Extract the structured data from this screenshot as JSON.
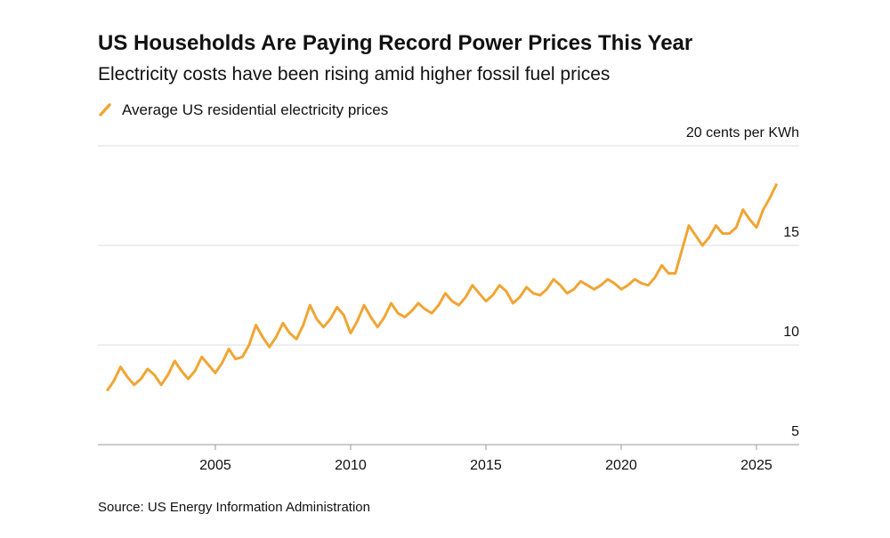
{
  "chart_data": {
    "type": "line",
    "title": "US Households Are Paying Record Power Prices This Year",
    "subtitle": "Electricity costs have been rising amid higher fossil fuel prices",
    "source": "Source: US Energy Information Administration",
    "x": [
      2001,
      2001.25,
      2001.5,
      2001.75,
      2002,
      2002.25,
      2002.5,
      2002.75,
      2003,
      2003.25,
      2003.5,
      2003.75,
      2004,
      2004.25,
      2004.5,
      2004.75,
      2005,
      2005.25,
      2005.5,
      2005.75,
      2006,
      2006.25,
      2006.5,
      2006.75,
      2007,
      2007.25,
      2007.5,
      2007.75,
      2008,
      2008.25,
      2008.5,
      2008.75,
      2009,
      2009.25,
      2009.5,
      2009.75,
      2010,
      2010.25,
      2010.5,
      2010.75,
      2011,
      2011.25,
      2011.5,
      2011.75,
      2012,
      2012.25,
      2012.5,
      2012.75,
      2013,
      2013.25,
      2013.5,
      2013.75,
      2014,
      2014.25,
      2014.5,
      2014.75,
      2015,
      2015.25,
      2015.5,
      2015.75,
      2016,
      2016.25,
      2016.5,
      2016.75,
      2017,
      2017.25,
      2017.5,
      2017.75,
      2018,
      2018.25,
      2018.5,
      2018.75,
      2019,
      2019.25,
      2019.5,
      2019.75,
      2020,
      2020.25,
      2020.5,
      2020.75,
      2021,
      2021.25,
      2021.5,
      2021.75,
      2022,
      2022.25,
      2022.5,
      2022.75,
      2023,
      2023.25,
      2023.5,
      2023.75,
      2024,
      2024.25,
      2024.5,
      2024.75,
      2025,
      2025.25,
      2025.5,
      2025.75
    ],
    "series": [
      {
        "name": "Average US residential electricity prices",
        "color": "#f0a534",
        "values": [
          7.7,
          8.2,
          8.9,
          8.4,
          8.0,
          8.3,
          8.8,
          8.5,
          8.0,
          8.5,
          9.2,
          8.7,
          8.3,
          8.7,
          9.4,
          9.0,
          8.6,
          9.1,
          9.8,
          9.3,
          9.4,
          10.0,
          11.0,
          10.4,
          9.9,
          10.4,
          11.1,
          10.6,
          10.3,
          11.0,
          12.0,
          11.3,
          10.9,
          11.3,
          11.9,
          11.5,
          10.6,
          11.2,
          12.0,
          11.4,
          10.9,
          11.4,
          12.1,
          11.6,
          11.4,
          11.7,
          12.1,
          11.8,
          11.6,
          12.0,
          12.6,
          12.2,
          12.0,
          12.4,
          13.0,
          12.6,
          12.2,
          12.5,
          13.0,
          12.7,
          12.1,
          12.4,
          12.9,
          12.6,
          12.5,
          12.8,
          13.3,
          13.0,
          12.6,
          12.8,
          13.2,
          13.0,
          12.8,
          13.0,
          13.3,
          13.1,
          12.8,
          13.0,
          13.3,
          13.1,
          13.0,
          13.4,
          14.0,
          13.6,
          13.6,
          14.8,
          16.0,
          15.5,
          15.0,
          15.4,
          16.0,
          15.6,
          15.6,
          15.9,
          16.8,
          16.3,
          15.9,
          16.8,
          17.4,
          18.1
        ]
      }
    ],
    "xlim": [
      2000.66,
      2026.58
    ],
    "xticks": [
      2005,
      2010,
      2015,
      2020,
      2025
    ],
    "ylim": [
      5,
      20
    ],
    "yticks": [
      5,
      10,
      15,
      {
        "value": 20,
        "label": "20 cents per KWh"
      }
    ],
    "grid": true
  }
}
